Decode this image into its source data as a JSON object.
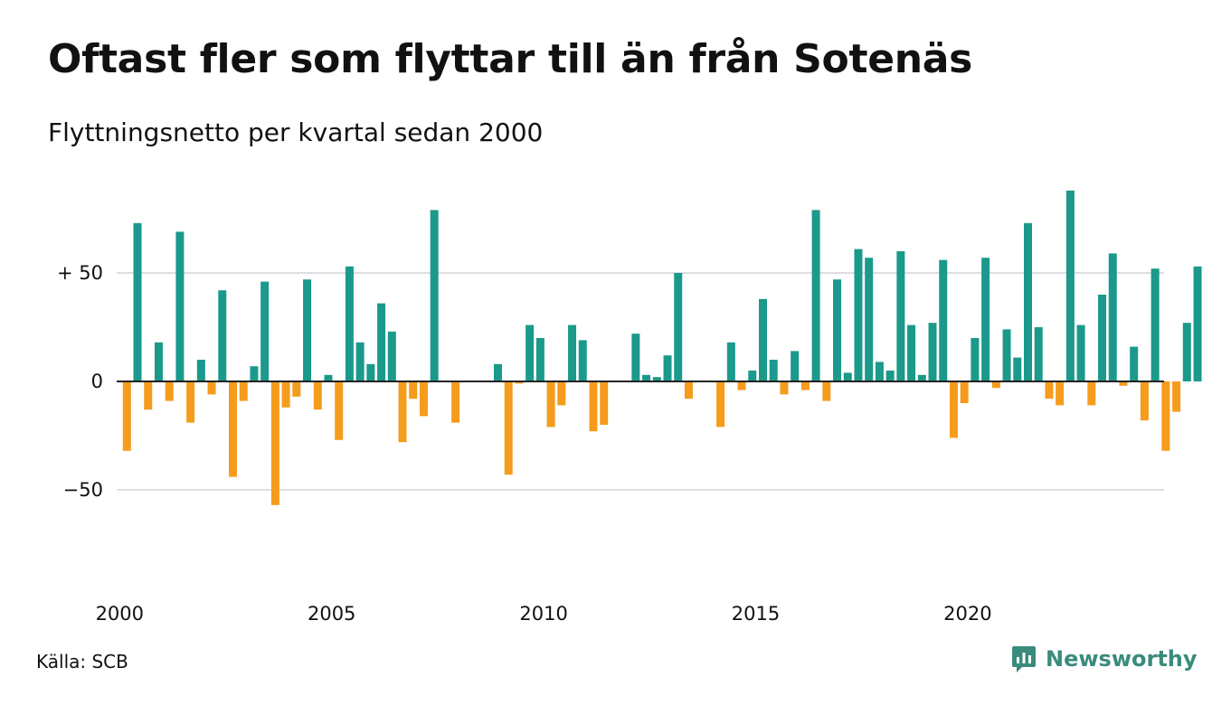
{
  "title": "Oftast fler som flyttar till än från Sotenäs",
  "subtitle": "Flyttningsnetto per kvartal sedan 2000",
  "source": "Källa: SCB",
  "brand": {
    "name": "Newsworthy",
    "icon": "newsworthy-logo-icon"
  },
  "colors": {
    "positive": "#1b998b",
    "negative": "#f59c1c",
    "grid": "#dddde3",
    "zero_line": "#222222"
  },
  "chart_data": {
    "type": "bar",
    "x_start": "2000 Q1",
    "x_step": "quarter",
    "x_tick_labels": [
      "2000",
      "2005",
      "2010",
      "2015",
      "2020"
    ],
    "y_tick_labels": [
      "+ 50",
      "0",
      "−50"
    ],
    "y_ticks": [
      50,
      0,
      -50
    ],
    "ylim": [
      -80,
      90
    ],
    "grid": true,
    "values": [
      -32,
      73,
      -13,
      18,
      -9,
      69,
      -19,
      10,
      -6,
      42,
      -44,
      -9,
      7,
      46,
      -57,
      -12,
      -7,
      47,
      -13,
      3,
      -27,
      53,
      18,
      8,
      36,
      23,
      -28,
      -8,
      -16,
      79,
      0,
      -19,
      0,
      0,
      0,
      8,
      -43,
      -1,
      26,
      20,
      -21,
      -11,
      26,
      19,
      -23,
      -20,
      0,
      0,
      22,
      3,
      2,
      12,
      50,
      -8,
      0,
      0,
      -21,
      18,
      -4,
      5,
      38,
      10,
      -6,
      14,
      -4,
      79,
      -9,
      47,
      4,
      61,
      57,
      9,
      5,
      60,
      26,
      3,
      27,
      56,
      -26,
      -10,
      20,
      57,
      -3,
      24,
      11,
      73,
      25,
      -8,
      -11,
      88,
      26,
      -11,
      40,
      59,
      -2,
      16,
      -18,
      52,
      -32,
      -14,
      27,
      53
    ]
  }
}
